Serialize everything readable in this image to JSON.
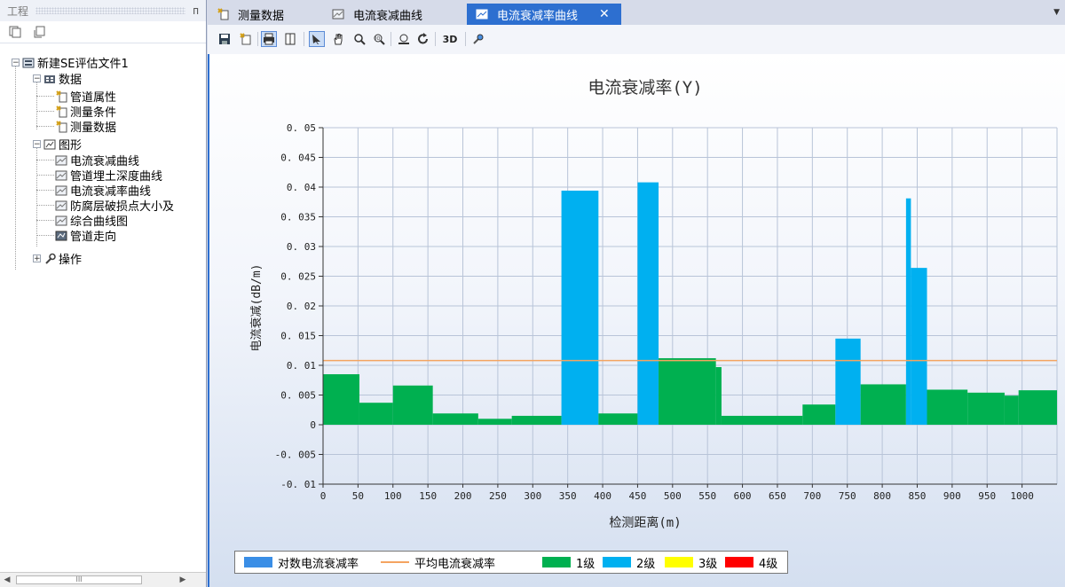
{
  "left_panel": {
    "title": "工程",
    "pin": "ᴨ",
    "tree": {
      "root": "新建SE评估文件1",
      "data_group": "数据",
      "data_items": [
        "管道属性",
        "测量条件",
        "测量数据"
      ],
      "graph_group": "图形",
      "graph_items": [
        "电流衰减曲线",
        "管道埋土深度曲线",
        "电流衰减率曲线",
        "防腐层破损点大小及",
        "综合曲线图",
        "管道走向"
      ],
      "ops_group": "操作"
    },
    "scroll_thumb": "III"
  },
  "tabs": [
    {
      "label": "测量数据",
      "icon": "table-icon"
    },
    {
      "label": "电流衰减曲线",
      "icon": "chart-icon"
    },
    {
      "label": "电流衰减率曲线",
      "icon": "chart-icon",
      "active": true
    }
  ],
  "toolbar": {
    "tool_3d_label": "3D",
    "icons": [
      "save-icon",
      "open-icon",
      "print-icon",
      "page-icon",
      "pointer-icon",
      "hand-icon",
      "zoom-icon",
      "zoom-fit-icon",
      "zoom-3d-icon",
      "refresh-icon",
      "3d-label",
      "settings-icon"
    ]
  },
  "colors": {
    "level1": "#00b050",
    "level2": "#00b0f0",
    "level3": "#ffff00",
    "level4": "#ff0000",
    "log_rate": "#3a8ee6",
    "average": "#f4a460",
    "active_tab": "#2d6fd0"
  },
  "chart_data": {
    "type": "bar",
    "title": "电流衰减率(Y)",
    "xlabel": "检测距离(m)",
    "ylabel": "电流衰减(dB/m)",
    "xlim": [
      0,
      1050
    ],
    "ylim": [
      -0.01,
      0.05
    ],
    "xticks": [
      0,
      50,
      100,
      150,
      200,
      250,
      300,
      350,
      400,
      450,
      500,
      550,
      600,
      650,
      700,
      750,
      800,
      850,
      900,
      950,
      1000
    ],
    "yticks": [
      "0.05",
      "0.045",
      "0.04",
      "0.035",
      "0.03",
      "0.025",
      "0.02",
      "0.015",
      "0.01",
      "0.005",
      "0",
      "-0.005",
      "-0.01"
    ],
    "grid": true,
    "average": 0.0108,
    "segments": [
      {
        "x0": 0,
        "x1": 52,
        "value": 0.0085,
        "level": 1
      },
      {
        "x0": 52,
        "x1": 100,
        "value": 0.0037,
        "level": 1
      },
      {
        "x0": 100,
        "x1": 157,
        "value": 0.0066,
        "level": 1
      },
      {
        "x0": 157,
        "x1": 222,
        "value": 0.0019,
        "level": 1
      },
      {
        "x0": 222,
        "x1": 270,
        "value": 0.001,
        "level": 1
      },
      {
        "x0": 270,
        "x1": 341,
        "value": 0.0015,
        "level": 1
      },
      {
        "x0": 341,
        "x1": 394,
        "value": 0.0394,
        "level": 2
      },
      {
        "x0": 394,
        "x1": 450,
        "value": 0.0019,
        "level": 1
      },
      {
        "x0": 450,
        "x1": 480,
        "value": 0.0408,
        "level": 2
      },
      {
        "x0": 480,
        "x1": 562,
        "value": 0.0112,
        "level": 1
      },
      {
        "x0": 562,
        "x1": 570,
        "value": 0.0097,
        "level": 1
      },
      {
        "x0": 570,
        "x1": 686,
        "value": 0.0015,
        "level": 1
      },
      {
        "x0": 686,
        "x1": 733,
        "value": 0.0034,
        "level": 1
      },
      {
        "x0": 733,
        "x1": 769,
        "value": 0.0145,
        "level": 2
      },
      {
        "x0": 769,
        "x1": 834,
        "value": 0.0068,
        "level": 1
      },
      {
        "x0": 834,
        "x1": 841,
        "value": 0.0381,
        "level": 2
      },
      {
        "x0": 841,
        "x1": 864,
        "value": 0.0264,
        "level": 2
      },
      {
        "x0": 864,
        "x1": 922,
        "value": 0.0059,
        "level": 1
      },
      {
        "x0": 922,
        "x1": 975,
        "value": 0.0054,
        "level": 1
      },
      {
        "x0": 975,
        "x1": 995,
        "value": 0.0049,
        "level": 1
      },
      {
        "x0": 995,
        "x1": 1050,
        "value": 0.0058,
        "level": 1
      }
    ],
    "legend": [
      {
        "label": "对数电流衰减率",
        "kind": "swatch",
        "color": "#3a8ee6"
      },
      {
        "label": "平均电流衰减率",
        "kind": "line",
        "color": "#f4a460"
      },
      {
        "label": "1级",
        "kind": "swatch",
        "color": "#00b050"
      },
      {
        "label": "2级",
        "kind": "swatch",
        "color": "#00b0f0"
      },
      {
        "label": "3级",
        "kind": "swatch",
        "color": "#ffff00"
      },
      {
        "label": "4级",
        "kind": "swatch",
        "color": "#ff0000"
      }
    ]
  }
}
